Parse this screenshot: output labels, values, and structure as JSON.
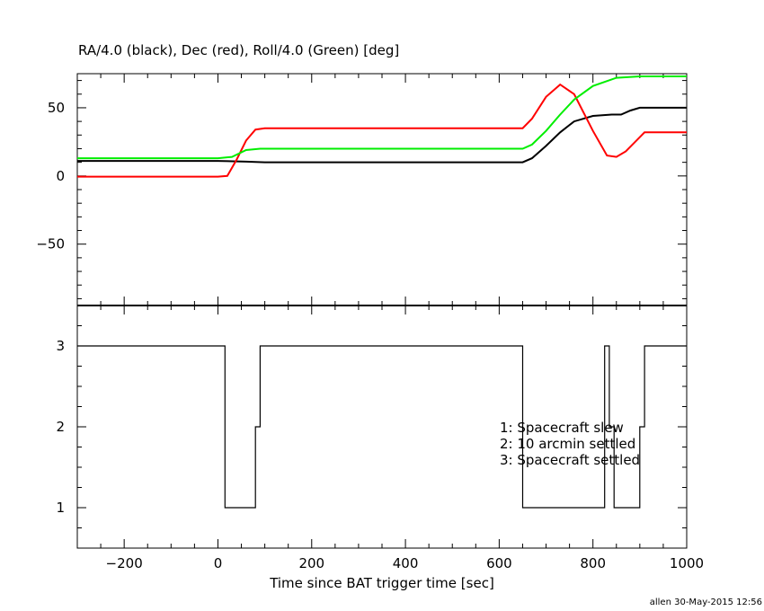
{
  "chart_data": [
    {
      "type": "line",
      "title": "RA/4.0 (black), Dec (red), Roll/4.0 (Green) [deg]",
      "xlim": [
        -300,
        1000
      ],
      "ylim": [
        -95,
        75
      ],
      "yticks": [
        -50,
        0,
        50
      ],
      "series": [
        {
          "color": "#000000",
          "x": [
            -300,
            -100,
            0,
            60,
            100,
            200,
            300,
            400,
            500,
            600,
            650,
            670,
            700,
            730,
            760,
            800,
            840,
            860,
            880,
            900,
            950,
            1000
          ],
          "y": [
            11,
            11,
            11,
            10.5,
            10,
            10,
            10,
            10,
            10,
            10,
            10,
            13,
            22,
            32,
            40,
            44,
            45,
            45,
            48,
            50,
            50,
            50
          ]
        },
        {
          "color": "#ff0000",
          "x": [
            -300,
            -100,
            0,
            20,
            40,
            60,
            80,
            100,
            200,
            300,
            400,
            500,
            600,
            650,
            670,
            700,
            730,
            760,
            800,
            830,
            850,
            870,
            890,
            910,
            950,
            1000
          ],
          "y": [
            -0.5,
            -0.5,
            -0.5,
            0,
            12,
            26,
            34,
            35,
            35,
            35,
            35,
            35,
            35,
            35,
            42,
            58,
            67,
            60,
            33,
            15,
            14,
            18,
            25,
            32,
            32,
            32
          ]
        },
        {
          "color": "#00ee00",
          "x": [
            -300,
            -100,
            0,
            30,
            60,
            90,
            200,
            300,
            400,
            500,
            600,
            650,
            670,
            700,
            730,
            760,
            800,
            850,
            900,
            950,
            1000
          ],
          "y": [
            13,
            13,
            13,
            14,
            19,
            20,
            20,
            20,
            20,
            20,
            20,
            20,
            23,
            33,
            45,
            56,
            66,
            72,
            73,
            73,
            73
          ]
        }
      ]
    },
    {
      "type": "line",
      "step": true,
      "xlim": [
        -300,
        1000
      ],
      "ylim": [
        0.5,
        3.5
      ],
      "yticks": [
        1,
        2,
        3
      ],
      "xticks": [
        -200,
        0,
        200,
        400,
        600,
        800,
        1000
      ],
      "xlabel": "Time since BAT trigger time [sec]",
      "series": [
        {
          "color": "#000000",
          "x": [
            -300,
            15,
            15,
            80,
            80,
            90,
            90,
            650,
            650,
            825,
            825,
            835,
            835,
            845,
            845,
            900,
            900,
            910,
            910,
            1000
          ],
          "y": [
            3,
            3,
            1,
            1,
            2,
            2,
            3,
            3,
            1,
            1,
            3,
            3,
            2,
            2,
            1,
            1,
            2,
            2,
            3,
            3
          ]
        }
      ],
      "annotations": [
        "1: Spacecraft slew",
        "2: 10 arcmin settled",
        "3: Spacecraft settled"
      ]
    }
  ],
  "footer": "allen 30-May-2015 12:56"
}
